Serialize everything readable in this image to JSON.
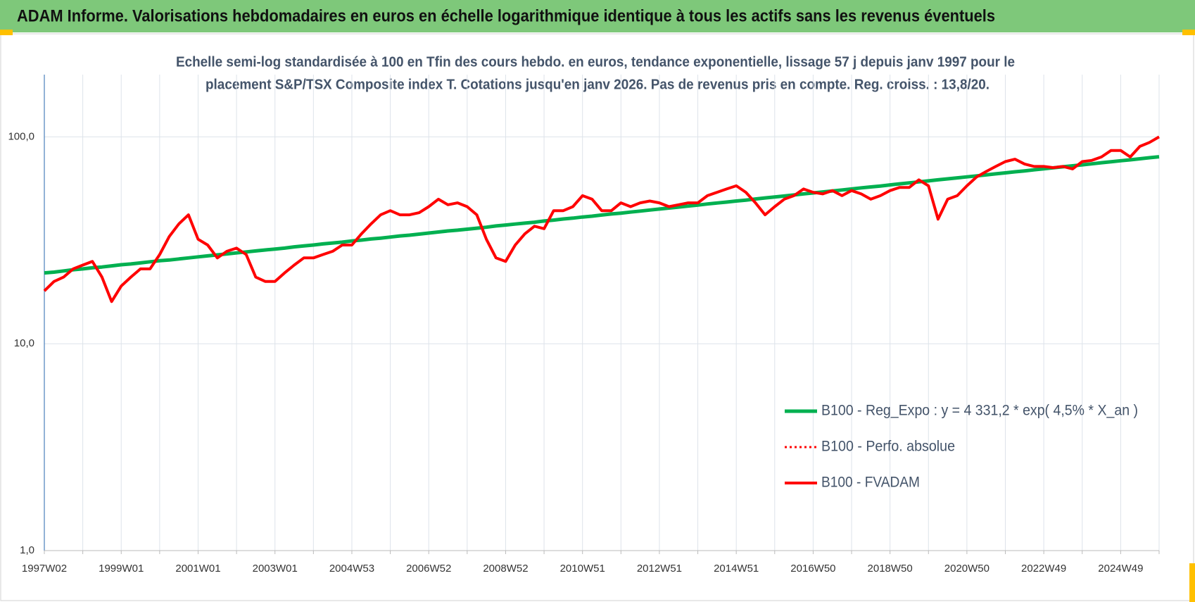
{
  "header": {
    "title": "ADAM Informe. Valorisations hebdomadaires en euros en échelle logarithmique identique à tous les actifs sans les revenus éventuels"
  },
  "chart_data": {
    "type": "line",
    "title": [
      "Echelle semi-log standardisée à 100 en Tfin des cours hebdo. en euros, tendance exponentielle, lissage 57 j depuis janv 1997 pour le",
      "placement S&P/TSX Composite index T. Cotations jusqu'en janv 2026.  Pas de revenus pris en compte. Reg. croiss. : 13,8/20."
    ],
    "log_scale": true,
    "grid": true,
    "legend": "right",
    "ylim": [
      1,
      200
    ],
    "yticks": [
      {
        "value": 1,
        "label": "1,0"
      },
      {
        "value": 10,
        "label": "10,0"
      },
      {
        "value": 100,
        "label": "100,0"
      }
    ],
    "categories": [
      "1997W02",
      null,
      null,
      null,
      null,
      null,
      null,
      null,
      "1999W01",
      null,
      null,
      null,
      null,
      null,
      null,
      null,
      "2001W01",
      null,
      null,
      null,
      null,
      null,
      null,
      null,
      "2003W01",
      null,
      null,
      null,
      null,
      null,
      null,
      null,
      "2004W53",
      null,
      null,
      null,
      null,
      null,
      null,
      null,
      "2006W52",
      null,
      null,
      null,
      null,
      null,
      null,
      null,
      "2008W52",
      null,
      null,
      null,
      null,
      null,
      null,
      null,
      "2010W51",
      null,
      null,
      null,
      null,
      null,
      null,
      null,
      "2012W51",
      null,
      null,
      null,
      null,
      null,
      null,
      null,
      "2014W51",
      null,
      null,
      null,
      null,
      null,
      null,
      null,
      "2016W50",
      null,
      null,
      null,
      null,
      null,
      null,
      null,
      "2018W50",
      null,
      null,
      null,
      null,
      null,
      null,
      null,
      "2020W50",
      null,
      null,
      null,
      null,
      null,
      null,
      null,
      "2022W49",
      null,
      null,
      null,
      null,
      null,
      null,
      null,
      "2024W49",
      null,
      null,
      null,
      null
    ],
    "series": [
      {
        "name": "B100 - Reg_Expo : y = 4 331,2 * exp( 4,5% *  X_an )",
        "color": "#00b050",
        "width": 5,
        "dash": "solid",
        "values": [
          22.0,
          22.2,
          22.5,
          22.8,
          23.0,
          23.3,
          23.5,
          23.8,
          24.1,
          24.3,
          24.6,
          24.9,
          25.2,
          25.4,
          25.7,
          26.0,
          26.3,
          26.6,
          26.9,
          27.2,
          27.5,
          27.8,
          28.1,
          28.4,
          28.7,
          29.0,
          29.4,
          29.7,
          30.0,
          30.4,
          30.7,
          31.0,
          31.4,
          31.7,
          32.1,
          32.4,
          32.8,
          33.2,
          33.5,
          33.9,
          34.3,
          34.7,
          35.1,
          35.4,
          35.8,
          36.2,
          36.6,
          37.1,
          37.5,
          37.9,
          38.3,
          38.7,
          39.2,
          39.6,
          40.1,
          40.5,
          41.0,
          41.4,
          41.9,
          42.4,
          42.8,
          43.3,
          43.8,
          44.3,
          44.8,
          45.3,
          45.8,
          46.3,
          46.8,
          47.4,
          47.9,
          48.4,
          49.0,
          49.5,
          50.1,
          50.7,
          51.2,
          51.8,
          52.4,
          53.0,
          53.6,
          54.2,
          54.8,
          55.4,
          56.0,
          56.7,
          57.3,
          57.9,
          58.6,
          59.3,
          59.9,
          60.6,
          61.3,
          62.0,
          62.7,
          63.4,
          64.1,
          64.8,
          65.5,
          66.3,
          67.0,
          67.8,
          68.5,
          69.3,
          70.1,
          70.9,
          71.7,
          72.5,
          73.3,
          74.1,
          75.0,
          75.8,
          76.7,
          77.5,
          78.4,
          79.3,
          80.2
        ]
      },
      {
        "name": "B100 - Perfo. absolue",
        "color": "#ff0000",
        "width": 3,
        "dash": "dotted"
      },
      {
        "name": "B100 - FVADAM",
        "color": "#ff0000",
        "width": 4,
        "dash": "solid",
        "values": [
          18,
          20,
          21,
          23,
          24,
          25,
          21,
          16,
          19,
          21,
          23,
          23,
          27,
          33,
          38,
          42,
          32,
          30,
          26,
          28,
          29,
          27,
          21,
          20,
          20,
          22,
          24,
          26,
          26,
          27,
          28,
          30,
          30,
          34,
          38,
          42,
          44,
          42,
          42,
          43,
          46,
          50,
          47,
          48,
          46,
          42,
          32,
          26,
          25,
          30,
          34,
          37,
          36,
          44,
          44,
          46,
          52,
          50,
          44,
          44,
          48,
          46,
          48,
          49,
          48,
          46,
          47,
          48,
          48,
          52,
          54,
          56,
          58,
          54,
          48,
          42,
          46,
          50,
          52,
          56,
          54,
          53,
          55,
          52,
          55,
          53,
          50,
          52,
          55,
          57,
          57,
          62,
          58,
          40,
          50,
          52,
          58,
          64,
          68,
          72,
          76,
          78,
          74,
          72,
          72,
          71,
          72,
          70,
          76,
          77,
          80,
          86,
          86,
          80,
          90,
          94,
          100
        ]
      }
    ]
  }
}
